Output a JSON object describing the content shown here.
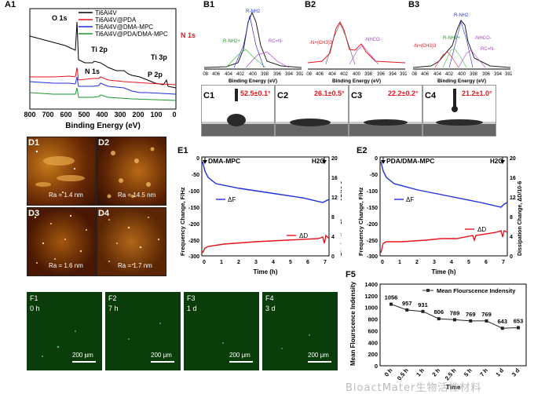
{
  "panels": {
    "A1": "A1",
    "B1": "B1",
    "B2": "B2",
    "B3": "B3",
    "C1": "C1",
    "C2": "C2",
    "C3": "C3",
    "C4": "C4",
    "D1": "D1",
    "D2": "D2",
    "D3": "D3",
    "D4": "D4",
    "E1": "E1",
    "E2": "E2",
    "F1": "F1",
    "F2": "F2",
    "F3": "F3",
    "F4": "F4",
    "F5": "F5"
  },
  "xps": {
    "legend": [
      "Ti6Al4V",
      "Ti6Al4V@PDA",
      "Ti6Al4V@DMA-MPC",
      "Ti6Al4V@PDA/DMA-MPC"
    ],
    "colors": [
      "#000000",
      "#e8131b",
      "#1f2fd8",
      "#1a9a2a"
    ],
    "annotations": [
      "O 1s",
      "Ti 2p",
      "N 1s",
      "Ti 3p",
      "P 2p"
    ],
    "xlabel": "Binding Energy (eV)",
    "xticks": [
      "800",
      "700",
      "600",
      "500",
      "400",
      "300",
      "200",
      "100",
      "0"
    ]
  },
  "hires": {
    "n1s": "N 1s",
    "xlabel": "Binding Energy (eV)",
    "xticks": [
      "408",
      "406",
      "404",
      "402",
      "400",
      "398",
      "396",
      "394",
      "392"
    ],
    "B1": {
      "peaks": [
        "R-NH2",
        "R-NH2+",
        "RC=N-"
      ]
    },
    "B2": {
      "peaks": [
        "-N+(CH3)3",
        "-NHCO-"
      ]
    },
    "B3": {
      "peaks": [
        "R-NH2",
        "R-NH2+",
        "-N+(CH3)3",
        "-NHCO-",
        "RC=N-"
      ]
    }
  },
  "contact": {
    "C1": "52.5±0.1°",
    "C2": "26.1±0.5°",
    "C3": "22.2±0.2°",
    "C4": "21.2±1.0°"
  },
  "afm": {
    "D1": "Ra = 1.4 nm",
    "D2": "Ra = 14.5 nm",
    "D3": "Ra = 1.6 nm",
    "D4": "Ra = 1.7 nm"
  },
  "qcm": {
    "E1": {
      "title": "DMA-MPC"
    },
    "E2": {
      "title": "PDA/DMA-MPC"
    },
    "h2o": "H2O",
    "dF": "ΔF",
    "dD": "ΔD",
    "ylabel_left": "Frequency Change, F/Hz",
    "ylabel_right": "Dissipation Change, ΔD/10-6",
    "xlabel": "Time (h)",
    "xticks": [
      "0",
      "1",
      "2",
      "3",
      "4",
      "5",
      "6",
      "7"
    ],
    "yleft": [
      "0",
      "-50",
      "-100",
      "-150",
      "-200",
      "-250",
      "-300"
    ],
    "yright": [
      "20",
      "16",
      "12",
      "8",
      "4",
      "0"
    ]
  },
  "fluo": {
    "F1": "0 h",
    "F2": "7 h",
    "F3": "1 d",
    "F4": "3 d",
    "scale": "200 μm"
  },
  "chart_data": {
    "type": "line",
    "title": "",
    "legend": "Mean Flourscence Indensity",
    "xlabel": "Time",
    "ylabel": "Mean Flourscence Indensity",
    "categories": [
      "0 h",
      "0.5 h",
      "1 h",
      "2 h",
      "2.5 h",
      "5 h",
      "7 h",
      "1 d",
      "3 d"
    ],
    "values": [
      1056,
      957,
      931,
      806,
      789,
      769,
      769,
      643,
      653
    ],
    "ylim": [
      0,
      1400
    ],
    "yticks": [
      "0",
      "200",
      "400",
      "600",
      "800",
      "1000",
      "1200",
      "1400"
    ]
  },
  "watermark": "BioactMater生物活性材料"
}
